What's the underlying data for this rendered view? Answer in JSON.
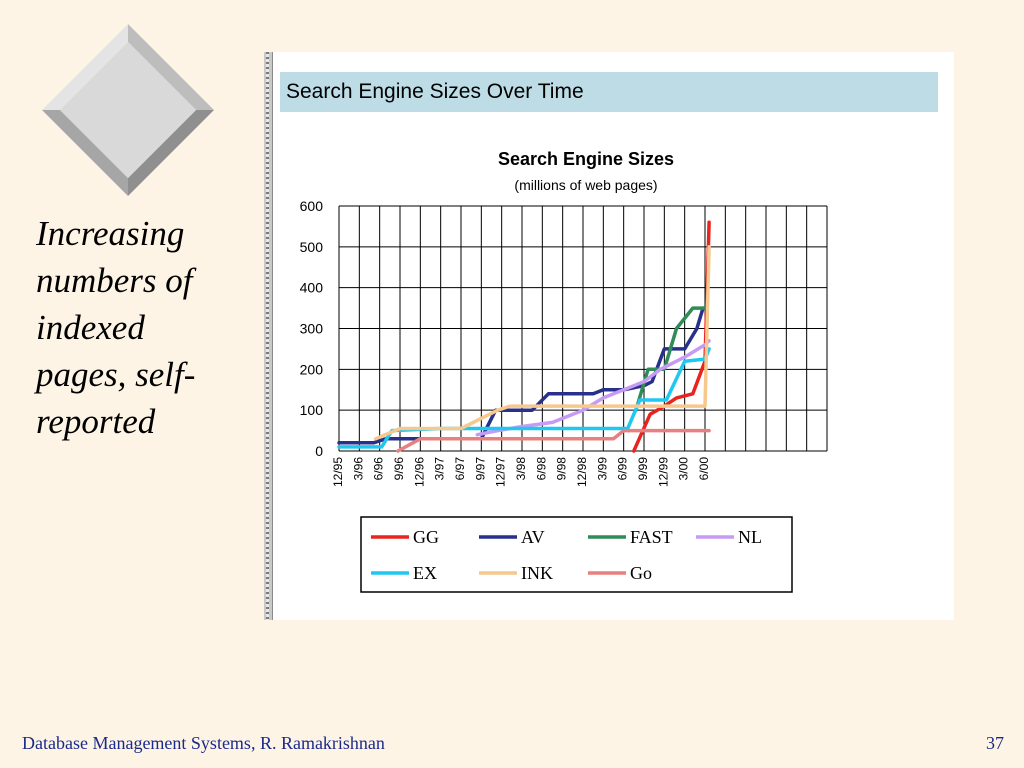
{
  "slide": {
    "bullet_lines": [
      "Increasing",
      "numbers of",
      "indexed",
      "pages, self-",
      "reported"
    ],
    "footer_left": "Database Management Systems, R. Ramakrishnan",
    "page_number": "37"
  },
  "figure": {
    "header_title": "Search Engine Sizes Over Time"
  },
  "chart_data": {
    "type": "line",
    "title": "Search Engine Sizes",
    "subtitle": "(millions of web pages)",
    "xlabel": "",
    "ylabel": "",
    "ylim": [
      0,
      600
    ],
    "yticks": [
      0,
      100,
      200,
      300,
      400,
      500,
      600
    ],
    "grid": true,
    "legend_position": "bottom",
    "categories": [
      "12/95",
      "3/96",
      "6/96",
      "9/96",
      "12/96",
      "3/97",
      "6/97",
      "9/97",
      "12/97",
      "3/98",
      "6/98",
      "9/98",
      "12/98",
      "3/99",
      "6/99",
      "9/99",
      "12/99",
      "3/00",
      "6/00"
    ],
    "series": [
      {
        "name": "GG",
        "color": "#e8241e",
        "points": [
          [
            14.5,
            0
          ],
          [
            15.3,
            90
          ],
          [
            16.0,
            110
          ],
          [
            16.6,
            130
          ],
          [
            17.4,
            140
          ],
          [
            18.0,
            220
          ],
          [
            18.1,
            380
          ],
          [
            18.2,
            560
          ]
        ]
      },
      {
        "name": "AV",
        "color": "#27308a",
        "points": [
          [
            0,
            20
          ],
          [
            1.7,
            20
          ],
          [
            2.3,
            30
          ],
          [
            7.0,
            30
          ],
          [
            7.7,
            100
          ],
          [
            9.5,
            100
          ],
          [
            10.3,
            140
          ],
          [
            12.5,
            140
          ],
          [
            13.0,
            150
          ],
          [
            14.0,
            150
          ],
          [
            15.0,
            160
          ],
          [
            15.4,
            170
          ],
          [
            16.0,
            250
          ],
          [
            17.0,
            250
          ],
          [
            17.6,
            300
          ],
          [
            17.9,
            350
          ],
          [
            18.1,
            350
          ]
        ]
      },
      {
        "name": "FAST",
        "color": "#2f8b57",
        "points": [
          [
            14.6,
            100
          ],
          [
            15.2,
            200
          ],
          [
            16.0,
            200
          ],
          [
            16.6,
            300
          ],
          [
            17.4,
            350
          ],
          [
            18.1,
            350
          ]
        ]
      },
      {
        "name": "NL",
        "color": "#c79af5",
        "points": [
          [
            6.8,
            40
          ],
          [
            7.8,
            50
          ],
          [
            9.0,
            60
          ],
          [
            10.5,
            70
          ],
          [
            12.0,
            100
          ],
          [
            13.0,
            130
          ],
          [
            14.0,
            150
          ],
          [
            15.0,
            170
          ],
          [
            15.8,
            200
          ],
          [
            17.0,
            230
          ],
          [
            18.0,
            260
          ],
          [
            18.2,
            270
          ]
        ]
      },
      {
        "name": "EX",
        "color": "#1ec8f0",
        "points": [
          [
            0,
            10
          ],
          [
            2.1,
            10
          ],
          [
            2.6,
            50
          ],
          [
            5.0,
            55
          ],
          [
            6.0,
            55
          ],
          [
            10.0,
            55
          ],
          [
            14.2,
            55
          ],
          [
            14.8,
            125
          ],
          [
            16.1,
            125
          ],
          [
            17.0,
            220
          ],
          [
            18.0,
            225
          ],
          [
            18.2,
            250
          ]
        ]
      },
      {
        "name": "INK",
        "color": "#f7c88e",
        "points": [
          [
            1.8,
            30
          ],
          [
            3.0,
            55
          ],
          [
            6.0,
            55
          ],
          [
            6.6,
            70
          ],
          [
            7.8,
            100
          ],
          [
            8.4,
            110
          ],
          [
            18.0,
            110
          ],
          [
            18.2,
            500
          ]
        ]
      },
      {
        "name": "Go",
        "color": "#e8807f",
        "points": [
          [
            2.9,
            0
          ],
          [
            4.0,
            30
          ],
          [
            13.5,
            30
          ],
          [
            14.0,
            50
          ],
          [
            18.2,
            50
          ]
        ]
      }
    ]
  }
}
